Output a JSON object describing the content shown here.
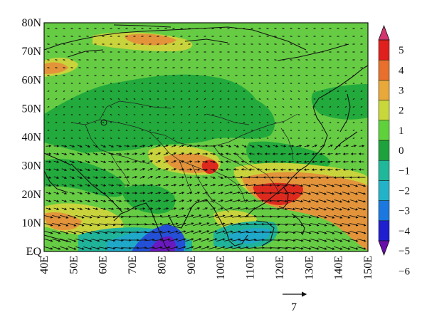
{
  "map": {
    "lat_labels": [
      "80N",
      "70N",
      "60N",
      "50N",
      "40N",
      "30N",
      "20N",
      "10N",
      "EQ"
    ],
    "lon_labels": [
      "40E",
      "50E",
      "60E",
      "70E",
      "80E",
      "90E",
      "100E",
      "110E",
      "120E",
      "130E",
      "140E",
      "150E"
    ],
    "lat_range": [
      0,
      80
    ],
    "lon_range": [
      40,
      150
    ]
  },
  "colorbar": {
    "labels": [
      "5",
      "4",
      "3",
      "2",
      "1",
      "0",
      "−1",
      "−2",
      "−3",
      "−4",
      "−5",
      "−6"
    ],
    "colors": [
      "#6a0dad",
      "#1f1fd0",
      "#1a78e0",
      "#22b3c9",
      "#1fb89a",
      "#1ea33c",
      "#5fd13a",
      "#c8d83a",
      "#e8a83a",
      "#e8702c",
      "#e0201c",
      "#d2346e"
    ]
  },
  "reference_vector": {
    "label": "7"
  },
  "palette": {
    "background": "#66cc44",
    "green_dark": "#1fa83a",
    "yellow": "#c9d43c",
    "orange": "#e3943a",
    "red": "#de2a1e",
    "teal": "#1fb49a",
    "cyan": "#1fa8c8",
    "blue": "#2450d8",
    "purple": "#6a18c0"
  }
}
